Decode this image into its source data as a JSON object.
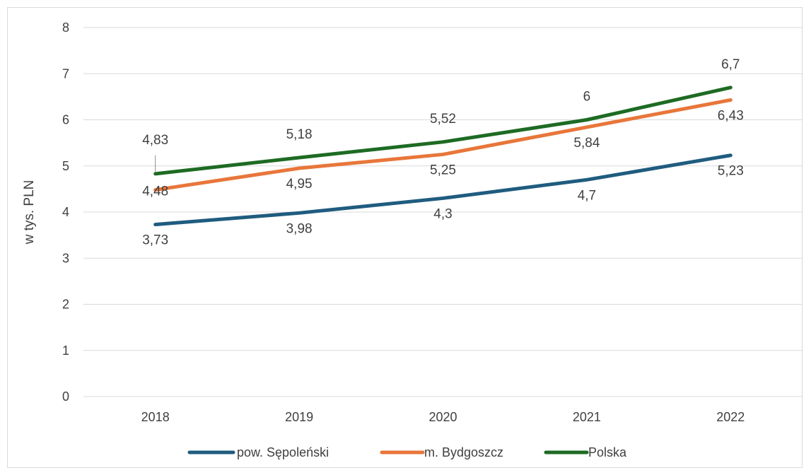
{
  "chart_data": {
    "type": "line",
    "title": "",
    "xlabel": "",
    "ylabel": "w tys. PLN",
    "ylim": [
      0,
      8
    ],
    "yticks": [
      "0",
      "1",
      "2",
      "3",
      "4",
      "5",
      "6",
      "7",
      "8"
    ],
    "grid": true,
    "legend_position": "bottom",
    "categories": [
      "2018",
      "2019",
      "2020",
      "2021",
      "2022"
    ],
    "series": [
      {
        "name": "pow. Sępoleński",
        "color": "#1f5c7f",
        "values": [
          3.73,
          3.98,
          4.3,
          4.7,
          5.23
        ],
        "labels": [
          "3,73",
          "3,98",
          "4,3",
          "4,7",
          "5,23"
        ]
      },
      {
        "name": "m. Bydgoszcz",
        "color": "#e8763a",
        "values": [
          4.48,
          4.95,
          5.25,
          5.84,
          6.43
        ],
        "labels": [
          "4,48",
          "4,95",
          "5,25",
          "5,84",
          "6,43"
        ]
      },
      {
        "name": "Polska",
        "color": "#1e6b24",
        "values": [
          4.83,
          5.18,
          5.52,
          6.0,
          6.7
        ],
        "labels": [
          "4,83",
          "5,18",
          "5,52",
          "6",
          "6,7"
        ]
      }
    ]
  }
}
